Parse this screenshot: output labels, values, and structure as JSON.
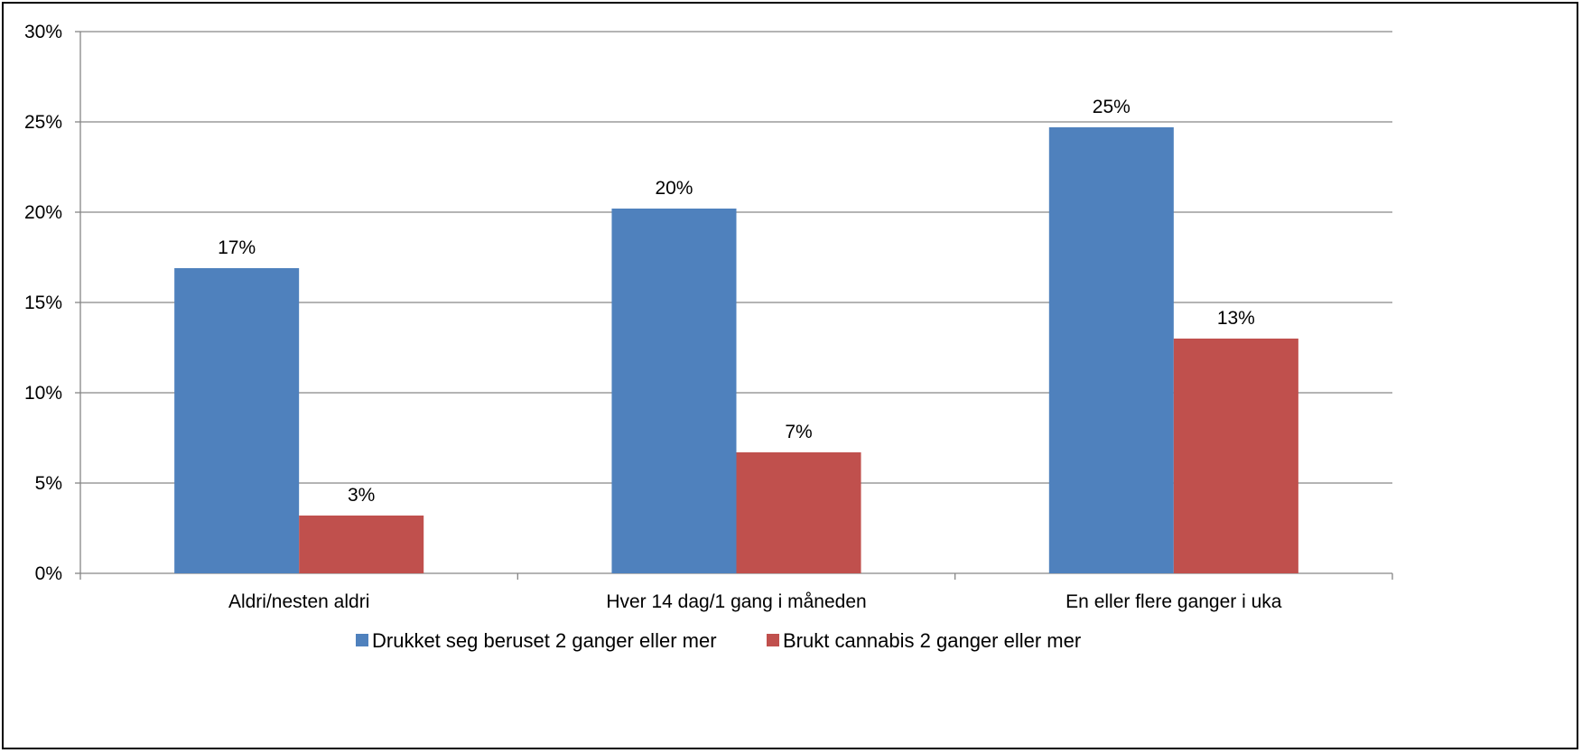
{
  "chart_data": {
    "type": "bar",
    "categories": [
      "Aldri/nesten aldri",
      "Hver 14 dag/1 gang i måneden",
      "En eller flere ganger i uka"
    ],
    "series": [
      {
        "name": "Drukket seg beruset 2 ganger eller mer",
        "color": "#4F81BD",
        "values": [
          16.9,
          20.2,
          24.7
        ],
        "labels": [
          "17%",
          "20%",
          "25%"
        ]
      },
      {
        "name": "Brukt cannabis 2 ganger eller mer",
        "color": "#C0504D",
        "values": [
          3.2,
          6.7,
          13.0
        ],
        "labels": [
          "3%",
          "7%",
          "13%"
        ]
      }
    ],
    "title": "",
    "xlabel": "",
    "ylabel": "",
    "ylim": [
      0,
      30
    ],
    "yticks": [
      0,
      5,
      10,
      15,
      20,
      25,
      30
    ],
    "ytick_labels": [
      "0%",
      "5%",
      "10%",
      "15%",
      "20%",
      "25%",
      "30%"
    ],
    "grid": true,
    "legend_position": "bottom"
  }
}
